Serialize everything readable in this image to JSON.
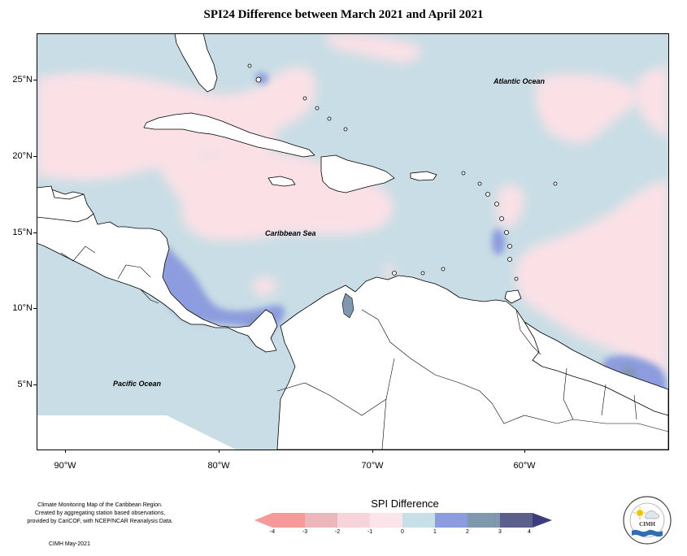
{
  "title": "SPI24 Difference between March 2021 and April 2021",
  "map": {
    "region": "Caribbean",
    "lon_range": [
      -92.5,
      -51.5
    ],
    "lat_range": [
      1.5,
      28.5
    ],
    "oceans": [
      {
        "name": "Atlantic Ocean",
        "lon": -62,
        "lat": 24
      },
      {
        "name": "Caribbean Sea",
        "lon": -75.5,
        "lat": 15
      },
      {
        "name": "Pacific Ocean",
        "lon": -88,
        "lat": 5
      }
    ],
    "lat_ticks": [
      {
        "label": "25°N",
        "value": 25
      },
      {
        "label": "20°N",
        "value": 20
      },
      {
        "label": "15°N",
        "value": 15
      },
      {
        "label": "10°N",
        "value": 10
      },
      {
        "label": "5°N",
        "value": 5
      }
    ],
    "lon_ticks": [
      {
        "label": "90°W",
        "value": -90
      },
      {
        "label": "80°W",
        "value": -80
      },
      {
        "label": "70°W",
        "value": -70
      },
      {
        "label": "60°W",
        "value": -60
      }
    ],
    "colors": {
      "ocean_base": "#c8dde5",
      "pink": "#fbe1e6",
      "blue_dark": "#8d9cde",
      "blue_mid": "#7f98ad",
      "land": "#ffffff",
      "coast": "#000000"
    }
  },
  "legend": {
    "title": "SPI Difference",
    "ticks": [
      "-4",
      "-3",
      "-2",
      "-1",
      "0",
      "1",
      "2",
      "3",
      "4"
    ],
    "colors": [
      "#f59999",
      "#ebb7ba",
      "#f7d3da",
      "#fbe5ea",
      "#c7dfe6",
      "#8d9cde",
      "#7f98ad",
      "#5a5f8c"
    ]
  },
  "credit": {
    "lines": [
      "Climate Monitoring Map of the Caribbean Region.",
      "Created by aggregating station based observations,",
      "provided by CariCOF, with NCEP/NCAR Reanalysis Data."
    ],
    "date": "CIMH May-2021"
  },
  "logo": {
    "text": "CIMH"
  }
}
